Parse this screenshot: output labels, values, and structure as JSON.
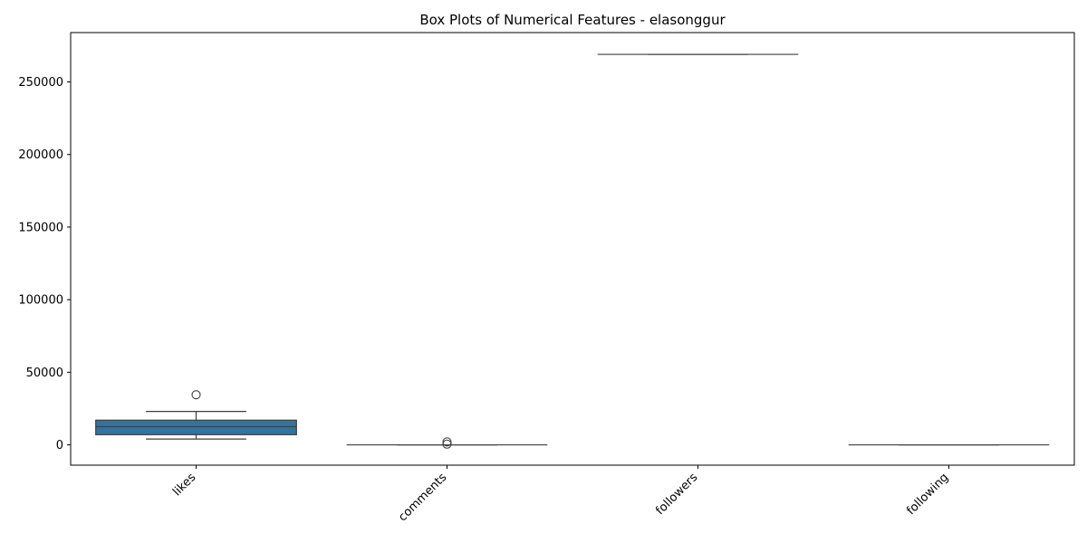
{
  "chart_data": {
    "type": "box",
    "title": "Box Plots of Numerical Features - elasonggur",
    "xlabel": "",
    "ylabel": "",
    "categories": [
      "likes",
      "comments",
      "followers",
      "following"
    ],
    "ylim": [
      -14000,
      284000
    ],
    "yticks": [
      0,
      50000,
      100000,
      150000,
      200000,
      250000
    ],
    "ytick_labels": [
      "0",
      "50000",
      "100000",
      "150000",
      "200000",
      "250000"
    ],
    "x_tick_rotation_deg": 45,
    "grid": false,
    "legend": "none",
    "box_color": "#3274a1",
    "line_color": "#3f3f3f",
    "boxes": [
      {
        "category": "likes",
        "whisker_low": 4000,
        "q1": 7000,
        "median": 12500,
        "q3": 17000,
        "whisker_high": 23000,
        "outliers": [
          34500
        ]
      },
      {
        "category": "comments",
        "whisker_low": 0,
        "q1": 0,
        "median": 0,
        "q3": 0,
        "whisker_high": 0,
        "outliers": [
          2000,
          500
        ]
      },
      {
        "category": "followers",
        "whisker_low": 269000,
        "q1": 269000,
        "median": 269000,
        "q3": 269000,
        "whisker_high": 269000,
        "outliers": []
      },
      {
        "category": "following",
        "whisker_low": 0,
        "q1": 0,
        "median": 0,
        "q3": 0,
        "whisker_high": 0,
        "outliers": []
      }
    ]
  }
}
